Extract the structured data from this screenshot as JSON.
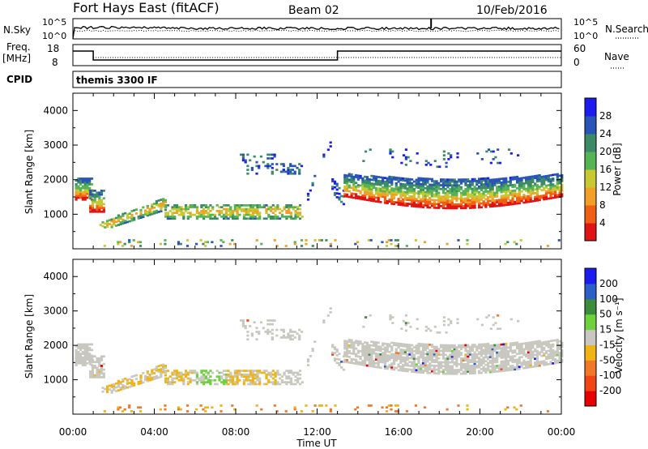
{
  "header": {
    "station": "Fort Hays East (fitACF)",
    "beam": "Beam 02",
    "date": "10/Feb/2016"
  },
  "strips": {
    "nsky_label": "N.Sky",
    "nsky_ticks": [
      "10^5",
      "10^0"
    ],
    "nsearch_label": "N.Search",
    "nsearch_ticks": [
      "10^5",
      "10^0"
    ],
    "freq_label_1": "Freq.",
    "freq_label_2": "[MHz]",
    "freq_ticks": [
      "18",
      "8"
    ],
    "nave_label": "Nave",
    "nave_ticks": [
      "60",
      "0"
    ],
    "cpid_label": "CPID",
    "cpid_text": "themis 3300 IF"
  },
  "colors": {
    "power_scale": [
      "#1c1cf0",
      "#2a55b8",
      "#3c8a66",
      "#55b455",
      "#c8c832",
      "#f0a028",
      "#f06014",
      "#e01414"
    ],
    "velocity_scale": [
      "#1c1cf0",
      "#2a60c8",
      "#3c8c3c",
      "#6ed23c",
      "#c8c8c0",
      "#f0b414",
      "#f07828",
      "#f04614",
      "#e80000"
    ],
    "gray": "#c8c8c0"
  },
  "chart_data": [
    {
      "type": "heatmap",
      "parameter": "Power",
      "xlabel": "",
      "ylabel": "Slant Range [km]",
      "ylim": [
        0,
        4500
      ],
      "y_ticks": [
        "1000",
        "2000",
        "3000",
        "4000"
      ],
      "colorbar_label": "Power [dB]",
      "colorbar_ticks": [
        "4",
        "8",
        "12",
        "16",
        "20",
        "24",
        "28"
      ]
    },
    {
      "type": "heatmap",
      "parameter": "Velocity",
      "xlabel": "Time UT",
      "ylabel": "Slant Range [km]",
      "ylim": [
        0,
        4500
      ],
      "y_ticks": [
        "1000",
        "2000",
        "3000",
        "4000"
      ],
      "x_ticks": [
        "00:00",
        "04:00",
        "08:00",
        "12:00",
        "16:00",
        "20:00",
        "00:00"
      ],
      "colorbar_label": "Velocity [m s⁻¹]",
      "colorbar_ticks": [
        "200",
        "100",
        "50",
        "15",
        "-15",
        "-50",
        "-100",
        "-200"
      ]
    }
  ]
}
